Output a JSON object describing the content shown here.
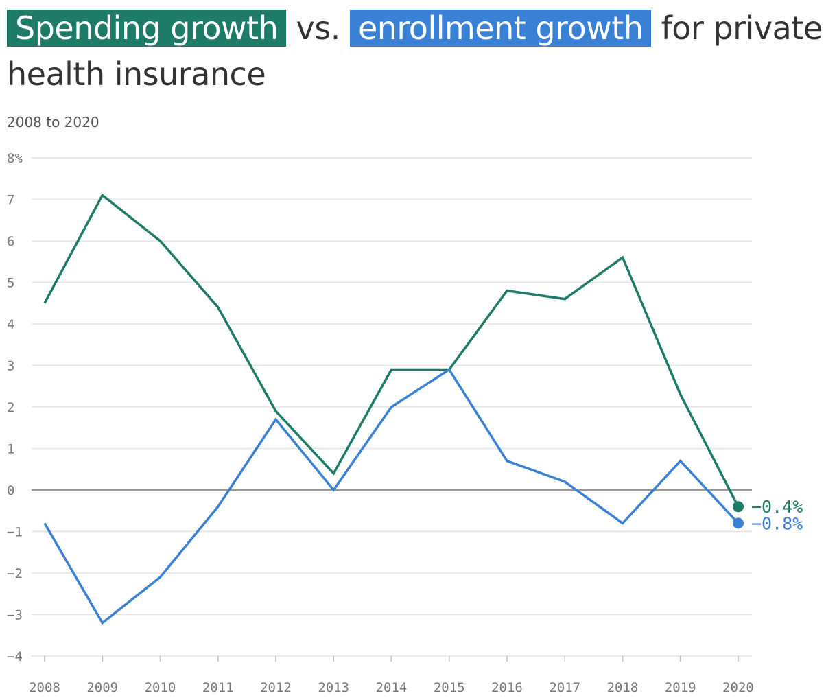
{
  "title": {
    "spending": "Spending growth",
    "vs": "vs.",
    "enrollment": "enrollment growth",
    "rest": "for private health insurance"
  },
  "subtitle": "2008 to 2020",
  "colors": {
    "spending": "#1e7b68",
    "enrollment": "#3a81d6",
    "grid": "#e3e3e3",
    "zero": "#999999"
  },
  "chart_data": {
    "type": "line",
    "x": [
      2008,
      2009,
      2010,
      2011,
      2012,
      2013,
      2014,
      2015,
      2016,
      2017,
      2018,
      2019,
      2020
    ],
    "x_tick_labels": [
      "2008",
      "2009",
      "2010",
      "2011",
      "2012",
      "2013",
      "2014",
      "2015",
      "2016",
      "2017",
      "2018",
      "2019",
      "2020"
    ],
    "series": [
      {
        "name": "Spending growth",
        "values": [
          4.5,
          7.1,
          6.0,
          4.4,
          1.9,
          0.4,
          2.9,
          2.9,
          4.8,
          4.6,
          5.6,
          2.3,
          -0.4
        ],
        "end_label": "−0.4%"
      },
      {
        "name": "enrollment growth",
        "values": [
          -0.8,
          -3.2,
          -2.1,
          -0.4,
          1.7,
          0.0,
          2.0,
          2.9,
          0.7,
          0.2,
          -0.8,
          0.7,
          -0.8
        ],
        "end_label": "−0.8%"
      }
    ],
    "ylim": [
      -4,
      8
    ],
    "y_ticks": [
      8,
      7,
      6,
      5,
      4,
      3,
      2,
      1,
      0,
      -1,
      -2,
      -3,
      -4
    ],
    "y_tick_labels": [
      "8%",
      "7",
      "6",
      "5",
      "4",
      "3",
      "2",
      "1",
      "0",
      "−1",
      "−2",
      "−3",
      "−4"
    ],
    "grid": true
  }
}
